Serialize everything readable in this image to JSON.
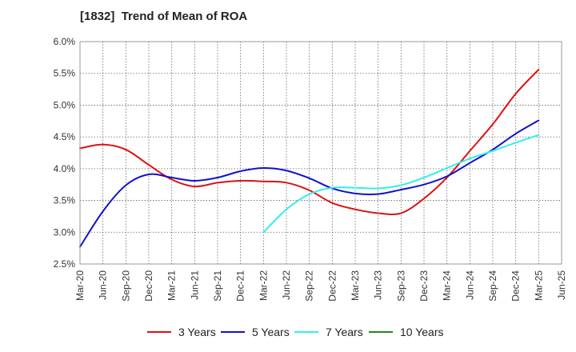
{
  "chart_data": {
    "type": "line",
    "title": "[1832]  Trend of Mean of ROA",
    "xlabel": "",
    "ylabel": "",
    "x_ticks": [
      "Mar-20",
      "Jun-20",
      "Sep-20",
      "Dec-20",
      "Mar-21",
      "Jun-21",
      "Sep-21",
      "Dec-21",
      "Mar-22",
      "Jun-22",
      "Sep-22",
      "Dec-22",
      "Mar-23",
      "Jun-23",
      "Sep-23",
      "Dec-23",
      "Mar-24",
      "Jun-24",
      "Sep-24",
      "Dec-24",
      "Mar-25",
      "Jun-25"
    ],
    "y_ticks": [
      "2.5%",
      "3.0%",
      "3.5%",
      "4.0%",
      "4.5%",
      "5.0%",
      "5.5%",
      "6.0%"
    ],
    "ylim": [
      2.5,
      6.0
    ],
    "grid": true,
    "legend_position": "bottom",
    "series": [
      {
        "name": "3 Years",
        "color": "#dd1111",
        "x": [
          "Mar-20",
          "Jun-20",
          "Sep-20",
          "Dec-20",
          "Mar-21",
          "Jun-21",
          "Sep-21",
          "Dec-21",
          "Mar-22",
          "Jun-22",
          "Sep-22",
          "Dec-22",
          "Mar-23",
          "Jun-23",
          "Sep-23",
          "Dec-23",
          "Mar-24",
          "Jun-24",
          "Sep-24",
          "Dec-24",
          "Mar-25"
        ],
        "values": [
          4.32,
          4.38,
          4.3,
          4.06,
          3.83,
          3.72,
          3.78,
          3.81,
          3.8,
          3.78,
          3.66,
          3.46,
          3.36,
          3.3,
          3.3,
          3.53,
          3.86,
          4.28,
          4.7,
          5.18,
          5.56
        ]
      },
      {
        "name": "5 Years",
        "color": "#1111cc",
        "x": [
          "Mar-20",
          "Jun-20",
          "Sep-20",
          "Dec-20",
          "Mar-21",
          "Jun-21",
          "Sep-21",
          "Dec-21",
          "Mar-22",
          "Jun-22",
          "Sep-22",
          "Dec-22",
          "Mar-23",
          "Jun-23",
          "Sep-23",
          "Dec-23",
          "Mar-24",
          "Jun-24",
          "Sep-24",
          "Dec-24",
          "Mar-25"
        ],
        "values": [
          2.77,
          3.33,
          3.74,
          3.91,
          3.86,
          3.81,
          3.86,
          3.96,
          4.01,
          3.97,
          3.85,
          3.69,
          3.61,
          3.6,
          3.67,
          3.75,
          3.88,
          4.09,
          4.3,
          4.55,
          4.76
        ]
      },
      {
        "name": "7 Years",
        "color": "#33eeee",
        "x": [
          "Mar-22",
          "Jun-22",
          "Sep-22",
          "Dec-22",
          "Mar-23",
          "Jun-23",
          "Sep-23",
          "Dec-23",
          "Mar-24",
          "Jun-24",
          "Sep-24",
          "Dec-24",
          "Mar-25"
        ],
        "values": [
          3.0,
          3.36,
          3.6,
          3.7,
          3.7,
          3.69,
          3.74,
          3.86,
          4.01,
          4.16,
          4.28,
          4.41,
          4.53
        ]
      },
      {
        "name": "10 Years",
        "color": "#228822",
        "x": [],
        "values": []
      }
    ]
  }
}
